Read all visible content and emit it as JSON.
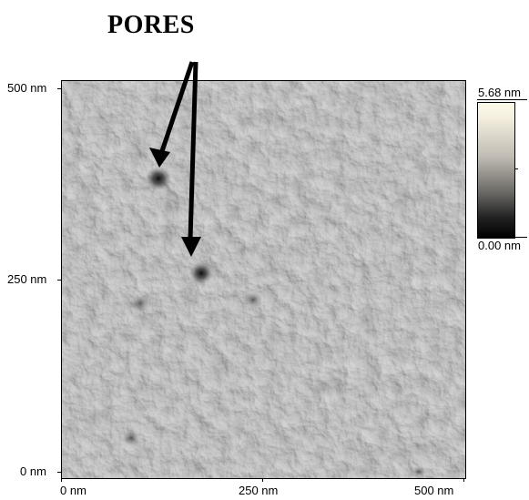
{
  "annotation": {
    "label": "PORES"
  },
  "image": {
    "y_axis": {
      "top_label": "500 nm",
      "middle_label": "250 nm",
      "bottom_label": "0 nm"
    },
    "x_axis": {
      "left_label": "0 nm",
      "middle_label": "250 nm",
      "right_label": "500 nm"
    }
  },
  "colorbar": {
    "max_label": "5.68 nm",
    "min_label": "0.00 nm"
  },
  "colors": {
    "background": "#ffffff",
    "surface_light": "#e7e7e7",
    "surface_dark": "#111111"
  }
}
